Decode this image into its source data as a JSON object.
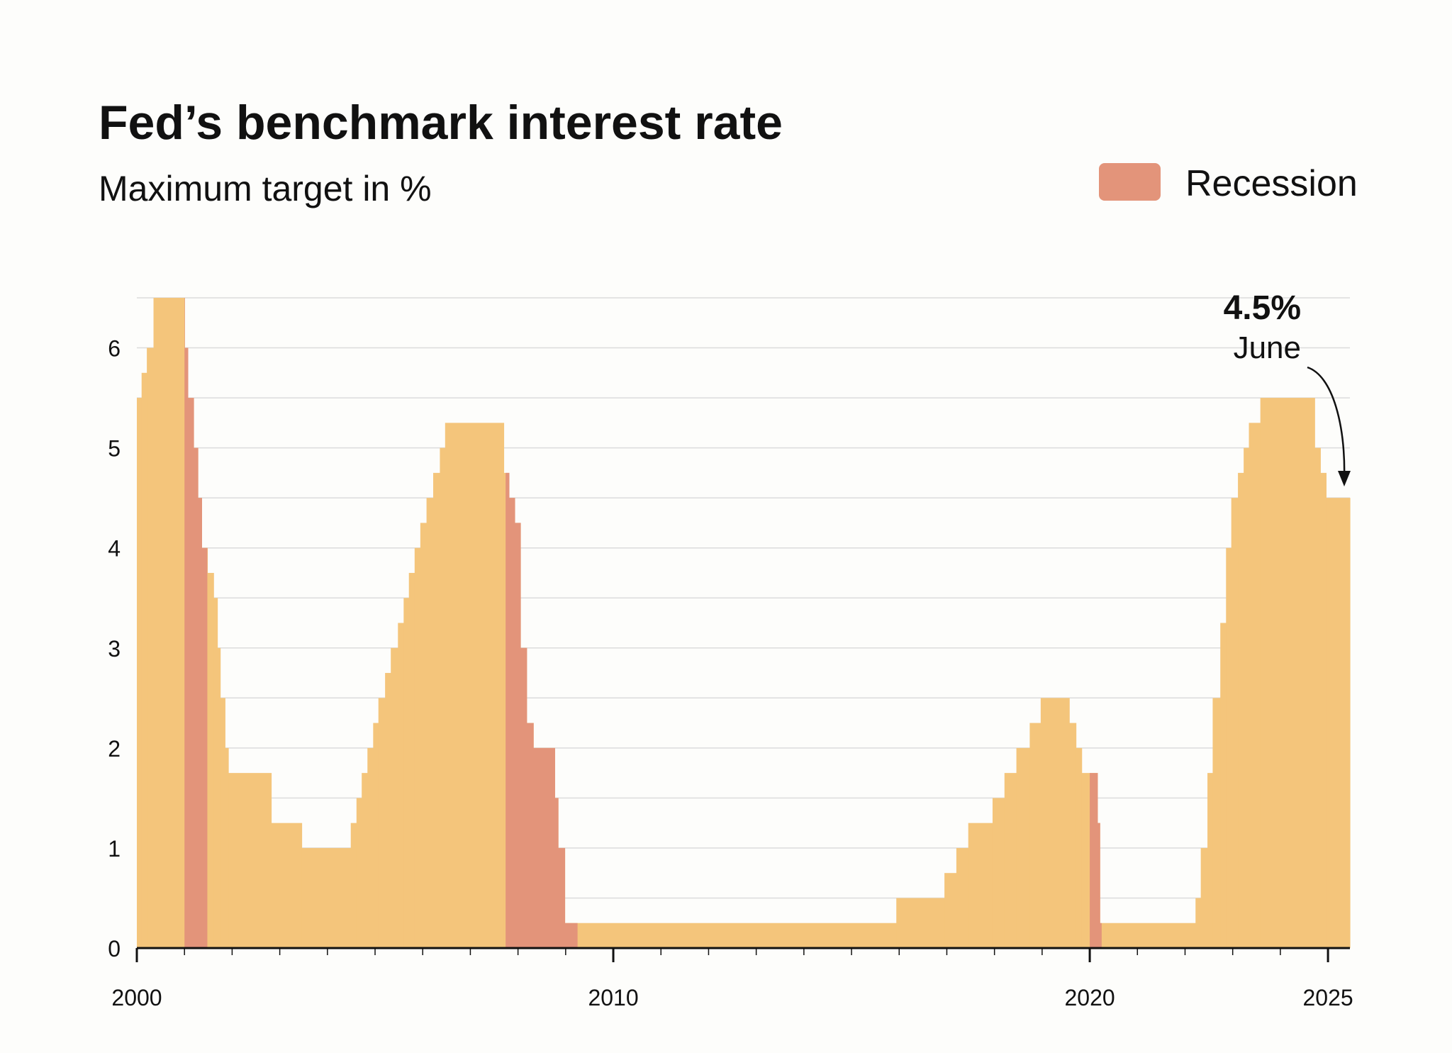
{
  "chart_data": {
    "type": "step-area",
    "title": "Fed’s benchmark interest rate",
    "subtitle": "Maximum target in %",
    "color": "#f4c57b",
    "x": [
      2000.0,
      2000.1,
      2000.21,
      2000.35,
      2001.0,
      2001.07,
      2001.19,
      2001.28,
      2001.36,
      2001.48,
      2001.61,
      2001.69,
      2001.75,
      2001.85,
      2001.92,
      2002.82,
      2003.46,
      2004.49,
      2004.61,
      2004.72,
      2004.84,
      2004.96,
      2005.07,
      2005.21,
      2005.33,
      2005.48,
      2005.6,
      2005.71,
      2005.83,
      2005.95,
      2006.08,
      2006.22,
      2006.36,
      2006.47,
      2007.7,
      2007.81,
      2007.93,
      2008.05,
      2008.18,
      2008.32,
      2008.77,
      2008.84,
      2008.98,
      2015.94,
      2016.95,
      2017.2,
      2017.45,
      2017.96,
      2018.21,
      2018.46,
      2018.74,
      2018.97,
      2019.57,
      2019.71,
      2019.83,
      2020.16,
      2020.21,
      2022.22,
      2022.33,
      2022.47,
      2022.58,
      2022.74,
      2022.86,
      2022.97,
      2023.11,
      2023.23,
      2023.34,
      2023.58,
      2024.72,
      2024.84,
      2024.96
    ],
    "values": [
      5.5,
      5.75,
      6,
      6.5,
      6,
      5.5,
      5,
      4.5,
      4,
      3.75,
      3.5,
      3,
      2.5,
      2,
      1.75,
      1.25,
      1,
      1.25,
      1.5,
      1.75,
      2,
      2.25,
      2.5,
      2.75,
      3,
      3.25,
      3.5,
      3.75,
      4,
      4.25,
      4.5,
      4.75,
      5,
      5.25,
      4.75,
      4.5,
      4.25,
      3,
      2.25,
      2,
      1.5,
      1,
      0.25,
      0.5,
      0.75,
      1,
      1.25,
      1.5,
      1.75,
      2,
      2.25,
      2.5,
      2.25,
      2,
      1.75,
      1.25,
      0.25,
      0.5,
      1,
      1.75,
      2.5,
      3.25,
      4,
      4.5,
      4.75,
      5,
      5.25,
      5.5,
      5,
      4.75,
      4.5
    ],
    "recession": {
      "name": "Recession",
      "color": "#e3947a",
      "periods": [
        [
          2001.0,
          2001.48
        ],
        [
          2007.74,
          2009.25
        ],
        [
          2020.0,
          2020.25
        ]
      ]
    },
    "xlim": [
      2000,
      2025.46
    ],
    "xticks": [
      2000,
      2010,
      2020,
      2025
    ],
    "xminorticks": [
      2001,
      2002,
      2003,
      2004,
      2005,
      2006,
      2007,
      2008,
      2009,
      2011,
      2012,
      2013,
      2014,
      2015,
      2016,
      2017,
      2018,
      2019,
      2021,
      2022,
      2023,
      2024
    ],
    "ylim": [
      0,
      6.5
    ],
    "yticks": [
      0,
      1,
      2,
      3,
      4,
      5,
      6
    ],
    "ygrid": [
      0.5,
      1,
      1.5,
      2,
      2.5,
      3,
      3.5,
      4,
      4.5,
      5,
      5.5,
      6,
      6.5
    ],
    "annotation": {
      "text": "4.5%",
      "sub": "June"
    }
  }
}
